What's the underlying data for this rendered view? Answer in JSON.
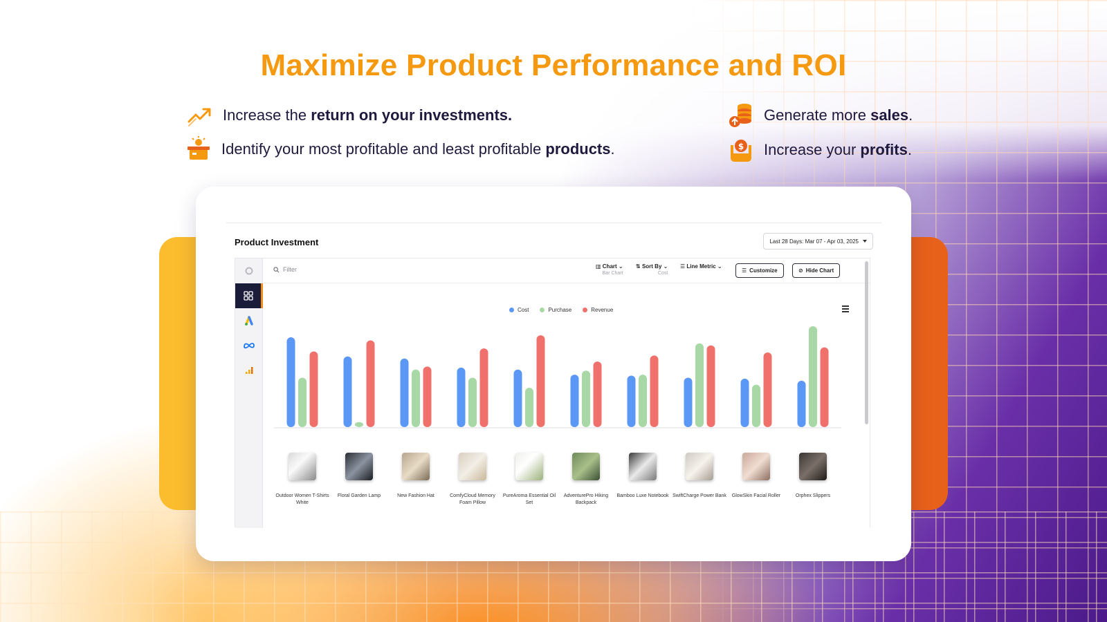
{
  "headline": "Maximize Product Performance and ROI",
  "features": [
    {
      "pre": "Increase the ",
      "bold": "return on your investments.",
      "post": "",
      "icon": "trending-up-icon"
    },
    {
      "pre": "Identify your most profitable and least profitable ",
      "bold": "products",
      "post": ".",
      "icon": "product-box-icon"
    },
    {
      "pre": "Generate more ",
      "bold": "sales",
      "post": ".",
      "icon": "coins-stack-icon"
    },
    {
      "pre": "Increase your ",
      "bold": "profits",
      "post": ".",
      "icon": "money-hand-icon"
    }
  ],
  "colors": {
    "accent": "#f59a10",
    "cost": "#5b97f5",
    "purchase": "#a8d8a6",
    "revenue": "#f0716c",
    "sidebar_active": "#1b1b3a"
  },
  "app": {
    "title": "Product Investment",
    "date_range": "Last 28 Days: Mar 07 - Apr 03, 2025",
    "filter_placeholder": "Filter",
    "toolbar": {
      "chart_label": "Chart",
      "chart_value": "Bar Chart",
      "sort_label": "Sort By",
      "sort_value": "Cost",
      "line_metric_label": "Line Metric",
      "customize_label": "Customize",
      "hide_chart_label": "Hide Chart"
    },
    "sidebar_icons": [
      "loading-icon",
      "grid-icon",
      "google-ads-icon",
      "meta-icon",
      "analytics-icon"
    ]
  },
  "chart_data": {
    "type": "bar",
    "categories": [
      "Outdoor Women T-Shirts White",
      "Floral Garden Lamp",
      "New Fashion Hat",
      "ComfyCloud Memory Foam Pillow",
      "PureAroma Essential Oil Set",
      "AdventurePro Hiking Backpack",
      "Bamboo Luxe Notebook",
      "SwiftCharge Power Bank",
      "GlowSkin Facial Roller",
      "Orphex Slippers"
    ],
    "series": [
      {
        "name": "Cost",
        "values": [
          89,
          70,
          68,
          59,
          57,
          52,
          51,
          49,
          48,
          46
        ]
      },
      {
        "name": "Purchase",
        "values": [
          49,
          5,
          57,
          49,
          39,
          56,
          52,
          83,
          42,
          100
        ]
      },
      {
        "name": "Revenue",
        "values": [
          75,
          86,
          60,
          78,
          91,
          65,
          71,
          81,
          74,
          79
        ]
      }
    ],
    "legend_position": "top-center",
    "grid": false
  }
}
